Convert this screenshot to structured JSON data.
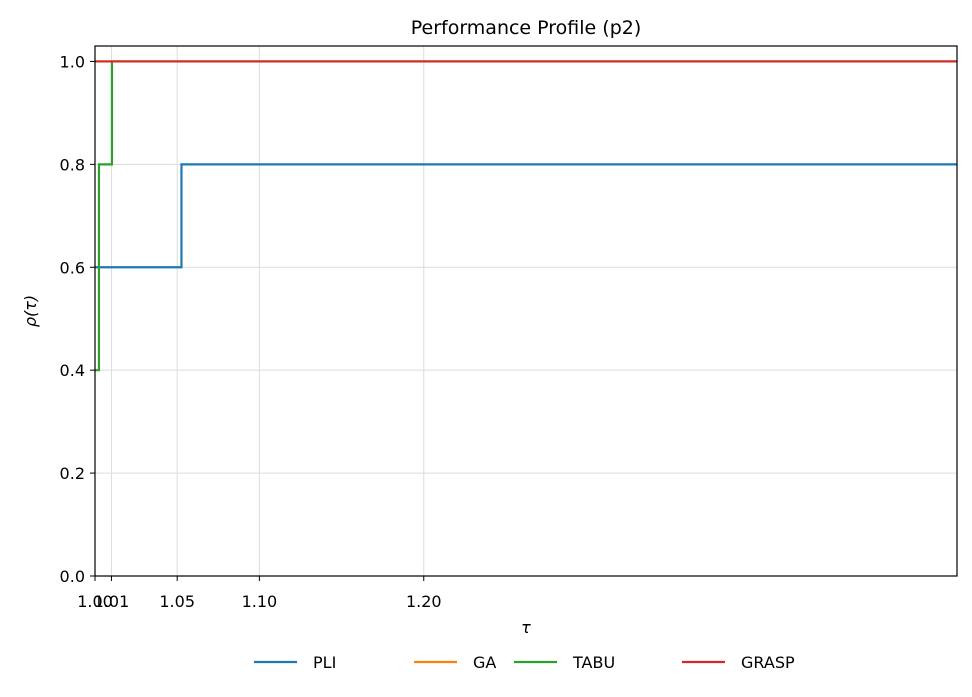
{
  "chart_data": {
    "type": "line",
    "step": true,
    "title": "Performance Profile (p2)",
    "xlabel": "τ",
    "ylabel": "ρ(τ)",
    "xlim": [
      1.0,
      1.5244
    ],
    "ylim": [
      0.0,
      1.03
    ],
    "x_ticks": [
      1.0,
      1.01,
      1.05,
      1.1,
      1.2
    ],
    "x_tick_labels": [
      "1.00",
      "1.01",
      "1.05",
      "1.10",
      "1.20"
    ],
    "y_ticks": [
      0.0,
      0.2,
      0.4,
      0.6,
      0.8,
      1.0
    ],
    "y_tick_labels": [
      "0.0",
      "0.2",
      "0.4",
      "0.6",
      "0.8",
      "1.0"
    ],
    "grid": true,
    "legend_position": "bottom-center",
    "series": [
      {
        "name": "PLI",
        "color": "#1f77b4",
        "points": [
          [
            1.0,
            0.6
          ],
          [
            1.0526,
            0.6
          ],
          [
            1.0526,
            0.8
          ],
          [
            1.5244,
            0.8
          ]
        ]
      },
      {
        "name": "GA",
        "color": "#ff7f0e",
        "points": [
          [
            1.0,
            1.0
          ],
          [
            1.5244,
            1.0
          ]
        ]
      },
      {
        "name": "TABU",
        "color": "#2ca02c",
        "points": [
          [
            1.0,
            0.4
          ],
          [
            1.0024,
            0.4
          ],
          [
            1.0024,
            0.8
          ],
          [
            1.0103,
            0.8
          ],
          [
            1.0103,
            1.0
          ],
          [
            1.5244,
            1.0
          ]
        ]
      },
      {
        "name": "GRASP",
        "color": "#d62728",
        "points": [
          [
            1.0,
            1.0
          ],
          [
            1.5244,
            1.0
          ]
        ]
      }
    ]
  }
}
